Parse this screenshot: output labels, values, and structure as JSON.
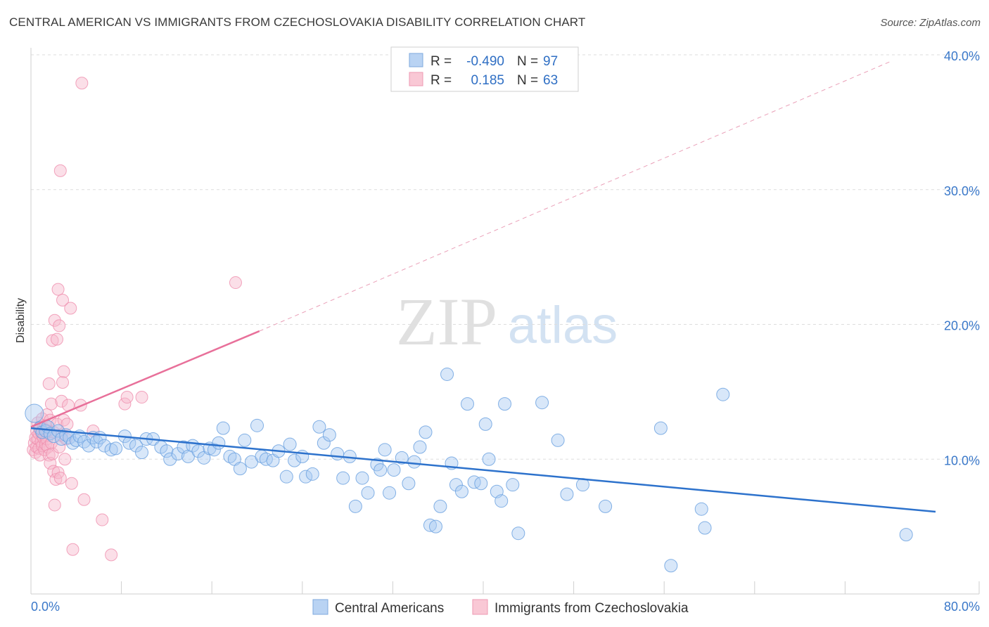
{
  "title": "CENTRAL AMERICAN VS IMMIGRANTS FROM CZECHOSLOVAKIA DISABILITY CORRELATION CHART",
  "source": "Source: ZipAtlas.com",
  "watermark": {
    "zip": "ZIP",
    "atlas": "atlas"
  },
  "legend": {
    "rows": [
      {
        "r_label": "R =",
        "r_value": "-0.490",
        "n_label": "N =",
        "n_value": "97",
        "color": "#a8c8f0"
      },
      {
        "r_label": "R =",
        "r_value": " 0.185",
        "n_label": "N =",
        "n_value": "63",
        "color": "#f6b8c9"
      }
    ]
  },
  "chart_data": {
    "type": "scatter",
    "ylabel": "Disability",
    "xlabel": "",
    "xlim": [
      0,
      80
    ],
    "ylim": [
      0,
      40
    ],
    "x_tick_labels": [
      "0.0%",
      "80.0%"
    ],
    "y_ticks": [
      10,
      20,
      30,
      40
    ],
    "y_tick_labels": [
      "10.0%",
      "20.0%",
      "30.0%",
      "40.0%"
    ],
    "grid": true,
    "legend_position": "top-center",
    "series": [
      {
        "name": "Central Americans",
        "color": "#6fa3e0",
        "trend": {
          "x0": 0,
          "y0": 12.3,
          "x1": 80,
          "y1": 6.1
        },
        "points": [
          [
            0.3,
            13.4
          ],
          [
            0.8,
            12.3
          ],
          [
            1.0,
            12.0
          ],
          [
            1.3,
            12.1
          ],
          [
            1.5,
            12.4
          ],
          [
            1.7,
            11.9
          ],
          [
            2.0,
            11.7
          ],
          [
            2.4,
            12.1
          ],
          [
            2.7,
            11.5
          ],
          [
            3.1,
            11.8
          ],
          [
            3.4,
            11.6
          ],
          [
            3.7,
            11.2
          ],
          [
            4.0,
            11.4
          ],
          [
            4.3,
            11.7
          ],
          [
            4.7,
            11.3
          ],
          [
            5.1,
            11.0
          ],
          [
            5.5,
            11.6
          ],
          [
            5.8,
            11.3
          ],
          [
            6.1,
            11.6
          ],
          [
            6.5,
            11.0
          ],
          [
            7.1,
            10.7
          ],
          [
            7.5,
            10.8
          ],
          [
            8.3,
            11.7
          ],
          [
            8.7,
            11.2
          ],
          [
            9.3,
            11.0
          ],
          [
            9.8,
            10.5
          ],
          [
            10.2,
            11.5
          ],
          [
            10.8,
            11.5
          ],
          [
            11.5,
            10.9
          ],
          [
            12.0,
            10.6
          ],
          [
            12.3,
            10.0
          ],
          [
            13.0,
            10.4
          ],
          [
            13.5,
            10.9
          ],
          [
            13.9,
            10.2
          ],
          [
            14.3,
            11.0
          ],
          [
            14.8,
            10.6
          ],
          [
            15.3,
            10.1
          ],
          [
            15.8,
            10.8
          ],
          [
            16.2,
            10.7
          ],
          [
            16.6,
            11.2
          ],
          [
            17.0,
            12.3
          ],
          [
            17.6,
            10.2
          ],
          [
            18.0,
            10.0
          ],
          [
            18.5,
            9.3
          ],
          [
            18.9,
            11.4
          ],
          [
            19.5,
            9.8
          ],
          [
            20.0,
            12.5
          ],
          [
            20.4,
            10.2
          ],
          [
            20.8,
            10.0
          ],
          [
            21.4,
            9.9
          ],
          [
            21.9,
            10.6
          ],
          [
            22.6,
            8.7
          ],
          [
            22.9,
            11.1
          ],
          [
            23.3,
            9.9
          ],
          [
            24.0,
            10.2
          ],
          [
            24.3,
            8.7
          ],
          [
            24.9,
            8.9
          ],
          [
            25.5,
            12.4
          ],
          [
            25.9,
            11.2
          ],
          [
            26.4,
            11.8
          ],
          [
            27.1,
            10.4
          ],
          [
            27.6,
            8.6
          ],
          [
            28.2,
            10.2
          ],
          [
            28.7,
            6.5
          ],
          [
            29.3,
            8.6
          ],
          [
            29.8,
            7.5
          ],
          [
            30.6,
            9.6
          ],
          [
            30.9,
            9.2
          ],
          [
            31.3,
            10.7
          ],
          [
            31.7,
            7.5
          ],
          [
            32.1,
            9.2
          ],
          [
            32.8,
            10.1
          ],
          [
            33.4,
            8.2
          ],
          [
            33.9,
            9.8
          ],
          [
            34.4,
            10.9
          ],
          [
            34.9,
            12.0
          ],
          [
            35.3,
            5.1
          ],
          [
            35.8,
            5.0
          ],
          [
            36.2,
            6.5
          ],
          [
            36.8,
            16.3
          ],
          [
            37.2,
            9.7
          ],
          [
            37.6,
            8.1
          ],
          [
            38.1,
            7.6
          ],
          [
            38.6,
            14.1
          ],
          [
            39.2,
            8.3
          ],
          [
            39.8,
            8.2
          ],
          [
            40.2,
            12.6
          ],
          [
            40.5,
            10.0
          ],
          [
            41.2,
            7.6
          ],
          [
            41.6,
            6.9
          ],
          [
            41.9,
            14.1
          ],
          [
            42.6,
            8.1
          ],
          [
            43.1,
            4.5
          ],
          [
            45.2,
            14.2
          ],
          [
            46.6,
            11.4
          ],
          [
            47.4,
            7.4
          ],
          [
            48.8,
            8.1
          ],
          [
            50.8,
            6.5
          ],
          [
            55.7,
            12.3
          ],
          [
            56.6,
            2.1
          ],
          [
            59.3,
            6.3
          ],
          [
            59.6,
            4.9
          ],
          [
            61.2,
            14.8
          ],
          [
            77.4,
            4.4
          ]
        ]
      },
      {
        "name": "Immigrants from Czechoslovakia",
        "color": "#f28aaa",
        "trend": {
          "x0": 0,
          "y0": 12.4,
          "x1": 20.2,
          "y1": 19.5
        },
        "trend_extension": {
          "x0": 20.2,
          "y0": 19.5,
          "x1": 76,
          "y1": 39.5
        },
        "points": [
          [
            0.2,
            10.7
          ],
          [
            0.3,
            11.2
          ],
          [
            0.4,
            10.5
          ],
          [
            0.4,
            11.6
          ],
          [
            0.5,
            12.1
          ],
          [
            0.5,
            10.9
          ],
          [
            0.6,
            11.5
          ],
          [
            0.6,
            12.7
          ],
          [
            0.7,
            10.8
          ],
          [
            0.7,
            11.9
          ],
          [
            0.8,
            12.4
          ],
          [
            0.8,
            10.3
          ],
          [
            0.9,
            11.3
          ],
          [
            0.9,
            12.0
          ],
          [
            1.0,
            11.0
          ],
          [
            1.0,
            13.0
          ],
          [
            1.1,
            11.6
          ],
          [
            1.1,
            12.3
          ],
          [
            1.2,
            10.7
          ],
          [
            1.2,
            11.8
          ],
          [
            1.3,
            12.5
          ],
          [
            1.3,
            11.1
          ],
          [
            1.4,
            13.3
          ],
          [
            1.4,
            11.5
          ],
          [
            1.5,
            12.1
          ],
          [
            1.5,
            10.9
          ],
          [
            1.6,
            15.6
          ],
          [
            1.6,
            10.3
          ],
          [
            1.7,
            9.7
          ],
          [
            1.7,
            12.9
          ],
          [
            1.8,
            11.2
          ],
          [
            1.8,
            14.1
          ],
          [
            1.9,
            18.8
          ],
          [
            1.9,
            10.4
          ],
          [
            2.0,
            12.0
          ],
          [
            2.0,
            9.1
          ],
          [
            2.1,
            20.3
          ],
          [
            2.1,
            6.6
          ],
          [
            2.2,
            8.5
          ],
          [
            2.3,
            18.9
          ],
          [
            2.3,
            12.6
          ],
          [
            2.4,
            22.6
          ],
          [
            2.4,
            9.0
          ],
          [
            2.5,
            19.9
          ],
          [
            2.5,
            10.9
          ],
          [
            2.6,
            31.4
          ],
          [
            2.6,
            8.6
          ],
          [
            2.7,
            14.3
          ],
          [
            2.7,
            11.8
          ],
          [
            2.8,
            21.8
          ],
          [
            2.8,
            15.7
          ],
          [
            2.9,
            16.5
          ],
          [
            2.9,
            12.9
          ],
          [
            3.0,
            10.0
          ],
          [
            3.1,
            11.5
          ],
          [
            3.2,
            12.6
          ],
          [
            3.3,
            14.0
          ],
          [
            3.5,
            21.2
          ],
          [
            3.6,
            8.2
          ],
          [
            3.7,
            3.3
          ],
          [
            4.4,
            14.0
          ],
          [
            4.5,
            37.9
          ],
          [
            4.7,
            7.0
          ],
          [
            5.5,
            12.1
          ],
          [
            6.3,
            5.5
          ],
          [
            7.1,
            2.9
          ],
          [
            8.3,
            14.1
          ],
          [
            8.5,
            14.6
          ],
          [
            9.8,
            14.6
          ],
          [
            18.1,
            23.1
          ]
        ]
      }
    ]
  },
  "bottom_legend": [
    {
      "label": "Central Americans",
      "color": "#a8c8f0"
    },
    {
      "label": "Immigrants from Czechoslovakia",
      "color": "#f6b8c9"
    }
  ]
}
